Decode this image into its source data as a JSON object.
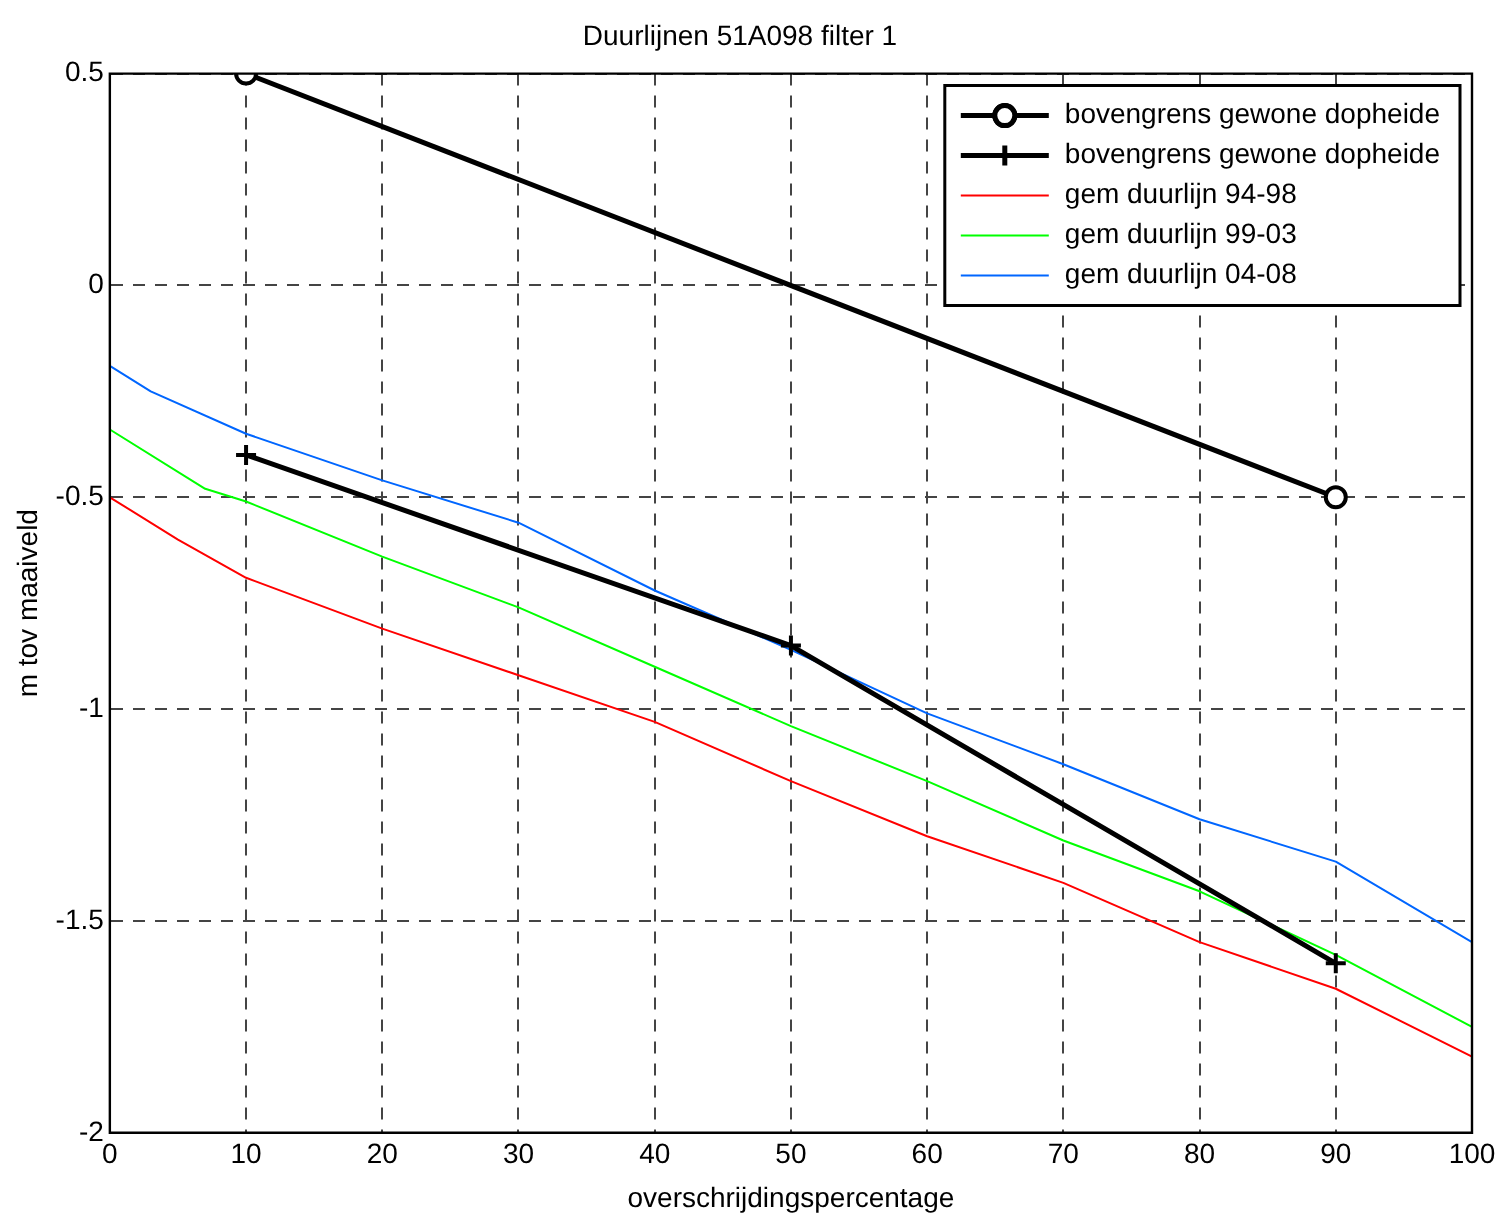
{
  "chart_data": {
    "type": "line",
    "title": "Duurlijnen 51A098 filter 1",
    "xlabel": "overschrijdingspercentage",
    "ylabel": "m tov maaiveld",
    "xlim": [
      0,
      100
    ],
    "xticks": [
      0,
      10,
      20,
      30,
      40,
      50,
      60,
      70,
      80,
      90,
      100
    ],
    "ylim": [
      -2,
      0.5
    ],
    "yticks": [
      -2,
      -1.5,
      -1,
      -0.5,
      0,
      0.5
    ],
    "grid": true,
    "legend": "top right",
    "line_style": "solid",
    "series": [
      {
        "name": "bovengrens gewone dopheide",
        "color": "#000000",
        "marker": "circle",
        "x": [
          10,
          90
        ],
        "values": [
          0.5,
          -0.5
        ]
      },
      {
        "name": "bovengrens gewone dopheide",
        "color": "#000000",
        "marker": "cross",
        "x": [
          10,
          50,
          90
        ],
        "values": [
          -0.4,
          -0.85,
          -1.6
        ]
      },
      {
        "name": "gem duurlijn 94-98",
        "color": "#ff0000",
        "marker": "none",
        "x": [
          0,
          5,
          10,
          20,
          30,
          40,
          50,
          60,
          70,
          80,
          90,
          100
        ],
        "values": [
          -0.5,
          -0.6,
          -0.69,
          -0.81,
          -0.92,
          -1.03,
          -1.17,
          -1.3,
          -1.41,
          -1.55,
          -1.66,
          -1.82
        ]
      },
      {
        "name": "gem duurlijn 99-03",
        "color": "#00ff00",
        "marker": "none",
        "x": [
          0,
          7,
          10,
          20,
          30,
          40,
          50,
          60,
          70,
          80,
          90,
          100
        ],
        "values": [
          -0.34,
          -0.48,
          -0.51,
          -0.64,
          -0.76,
          -0.9,
          -1.04,
          -1.17,
          -1.31,
          -1.43,
          -1.58,
          -1.75
        ]
      },
      {
        "name": "gem duurlijn 04-08",
        "color": "#0066ff",
        "marker": "none",
        "x": [
          0,
          3,
          10,
          20,
          30,
          40,
          50,
          60,
          70,
          80,
          90,
          100
        ],
        "values": [
          -0.19,
          -0.25,
          -0.35,
          -0.46,
          -0.56,
          -0.72,
          -0.86,
          -1.01,
          -1.13,
          -1.26,
          -1.36,
          -1.55
        ]
      }
    ]
  }
}
